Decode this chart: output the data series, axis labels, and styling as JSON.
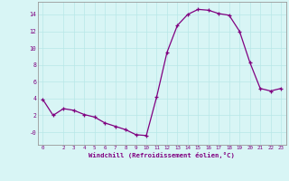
{
  "x": [
    0,
    1,
    2,
    3,
    4,
    5,
    6,
    7,
    8,
    9,
    10,
    11,
    12,
    13,
    14,
    15,
    16,
    17,
    18,
    19,
    20,
    21,
    22,
    23
  ],
  "y": [
    3.9,
    2.0,
    2.8,
    2.6,
    2.1,
    1.8,
    1.1,
    0.7,
    0.3,
    -0.3,
    -0.4,
    4.2,
    9.5,
    12.7,
    14.0,
    14.6,
    14.5,
    14.1,
    13.9,
    12.0,
    8.3,
    5.2,
    4.9,
    5.2
  ],
  "xlim": [
    -0.5,
    23.5
  ],
  "ylim": [
    -1.5,
    15.5
  ],
  "yticks": [
    0,
    2,
    4,
    6,
    8,
    10,
    12,
    14
  ],
  "ytick_labels": [
    "-0",
    "2",
    "4",
    "6",
    "8",
    "10",
    "12",
    "14"
  ],
  "xticks": [
    0,
    2,
    3,
    4,
    5,
    6,
    7,
    8,
    9,
    10,
    11,
    12,
    13,
    14,
    15,
    16,
    17,
    18,
    19,
    20,
    21,
    22,
    23
  ],
  "xlabel": "Windchill (Refroidissement éolien,°C)",
  "line_color": "#800080",
  "marker": "+",
  "background_color": "#d8f5f5",
  "grid_color": "#b8e8e8",
  "xlabel_color": "#800080",
  "tick_color": "#800080",
  "tick_fontsize": 4.2,
  "xlabel_fontsize": 5.2
}
